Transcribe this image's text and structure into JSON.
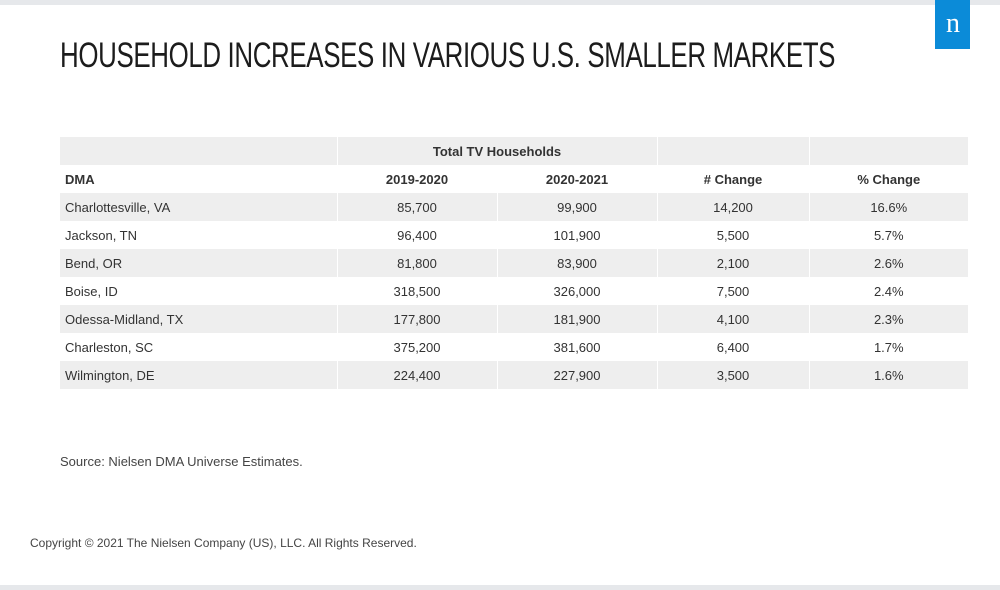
{
  "title": "HOUSEHOLD INCREASES IN VARIOUS U.S. SMALLER MARKETS",
  "logo": {
    "icon": "nielsen-n-logo",
    "letter": "n",
    "color": "#0b8bd8"
  },
  "chart_data": {
    "type": "table",
    "group_header": "Total TV Households",
    "columns": [
      "DMA",
      "2019-2020",
      "2020-2021",
      "# Change",
      "% Change"
    ],
    "rows": [
      {
        "dma": "Charlottesville, VA",
        "y2019_2020": "85,700",
        "y2020_2021": "99,900",
        "change": "14,200",
        "pct_change": "16.6%"
      },
      {
        "dma": "Jackson, TN",
        "y2019_2020": "96,400",
        "y2020_2021": "101,900",
        "change": "5,500",
        "pct_change": "5.7%"
      },
      {
        "dma": "Bend, OR",
        "y2019_2020": "81,800",
        "y2020_2021": "83,900",
        "change": "2,100",
        "pct_change": "2.6%"
      },
      {
        "dma": "Boise, ID",
        "y2019_2020": "318,500",
        "y2020_2021": "326,000",
        "change": "7,500",
        "pct_change": "2.4%"
      },
      {
        "dma": "Odessa-Midland, TX",
        "y2019_2020": "177,800",
        "y2020_2021": "181,900",
        "change": "4,100",
        "pct_change": "2.3%"
      },
      {
        "dma": "Charleston, SC",
        "y2019_2020": "375,200",
        "y2020_2021": "381,600",
        "change": "6,400",
        "pct_change": "1.7%"
      },
      {
        "dma": "Wilmington, DE",
        "y2019_2020": "224,400",
        "y2020_2021": "227,900",
        "change": "3,500",
        "pct_change": "1.6%"
      }
    ]
  },
  "source": "Source: Nielsen DMA Universe Estimates.",
  "copyright": "Copyright © 2021 The Nielsen Company (US), LLC. All Rights Reserved.",
  "colors": {
    "row_shade": "#eeeeee",
    "bar": "#e6e8eb",
    "brand": "#0b8bd8"
  }
}
